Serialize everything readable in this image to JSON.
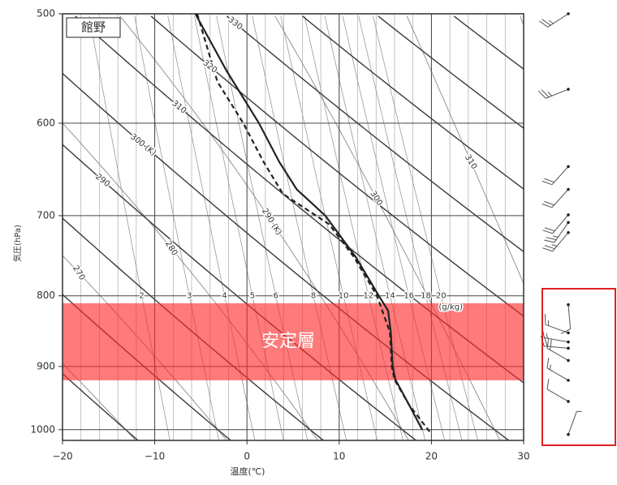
{
  "chart_data": {
    "type": "emagram",
    "station": "館野",
    "xlabel": "温度(℃)",
    "ylabel": "気圧(hPa)",
    "xlim": [
      -20,
      30
    ],
    "xticks": [
      {
        "value": -20,
        "label": "−20"
      },
      {
        "value": -10,
        "label": "−10"
      },
      0,
      10,
      20,
      30
    ],
    "ylim": [
      1018,
      500
    ],
    "yscale": "log",
    "yticks": [
      500,
      600,
      700,
      800,
      900,
      1000
    ],
    "dry_adiabats": [
      290,
      {
        "value": 300,
        "label": "300 (K)"
      },
      310,
      320,
      330
    ],
    "moist_adiabats": [
      270,
      280,
      {
        "value": 290,
        "label": "290 (K)"
      },
      300,
      310
    ],
    "mixing_ratio": {
      "values": [
        2,
        3,
        4,
        5,
        6,
        8,
        10,
        12,
        14,
        16,
        18,
        20
      ],
      "unit": "(g/kg)"
    },
    "series": [
      {
        "color": "#222222",
        "dash": false,
        "pressure": [
          500,
          550,
          600,
          640,
          670,
          700,
          750,
          800,
          820,
          850,
          900,
          920,
          960,
          1000
        ],
        "temperature": [
          -5.6,
          -2.2,
          1.3,
          3.5,
          5.4,
          8.5,
          11.8,
          14.3,
          15.3,
          15.6,
          15.8,
          16.1,
          17.6,
          19.0
        ]
      },
      {
        "color": "#222222",
        "dash": true,
        "pressure": [
          500,
          560,
          600,
          640,
          675,
          710,
          750,
          800,
          850,
          900,
          920,
          960,
          1005
        ],
        "temperature": [
          -5.4,
          -3.2,
          -0.4,
          1.8,
          3.9,
          8.9,
          11.6,
          14.1,
          15.5,
          15.7,
          16.0,
          17.6,
          19.9
        ]
      }
    ],
    "stable_layer": {
      "label": "安定層",
      "pressure": [
        810,
        921
      ],
      "color": "rgba(255,40,40,0.62)"
    },
    "wind": [
      {
        "pressure": 500,
        "direction": 237,
        "speed": 25
      },
      {
        "pressure": 567,
        "direction": 248,
        "speed": 25
      },
      {
        "pressure": 645,
        "direction": 222,
        "speed": 20
      },
      {
        "pressure": 670,
        "direction": 222,
        "speed": 20
      },
      {
        "pressure": 699,
        "direction": 220,
        "speed": 20
      },
      {
        "pressure": 708,
        "direction": 215,
        "speed": 25
      },
      {
        "pressure": 720,
        "direction": 220,
        "speed": 25
      },
      {
        "pressure": 812,
        "direction": 175,
        "speed": 10
      },
      {
        "pressure": 851,
        "direction": 290,
        "speed": 15
      },
      {
        "pressure": 864,
        "direction": 280,
        "speed": 15
      },
      {
        "pressure": 873,
        "direction": 275,
        "speed": 20
      },
      {
        "pressure": 891,
        "direction": 300,
        "speed": 20
      },
      {
        "pressure": 921,
        "direction": 300,
        "speed": 15
      },
      {
        "pressure": 954,
        "direction": 300,
        "speed": 10
      },
      {
        "pressure": 1008,
        "direction": 20,
        "speed": 5
      }
    ]
  }
}
